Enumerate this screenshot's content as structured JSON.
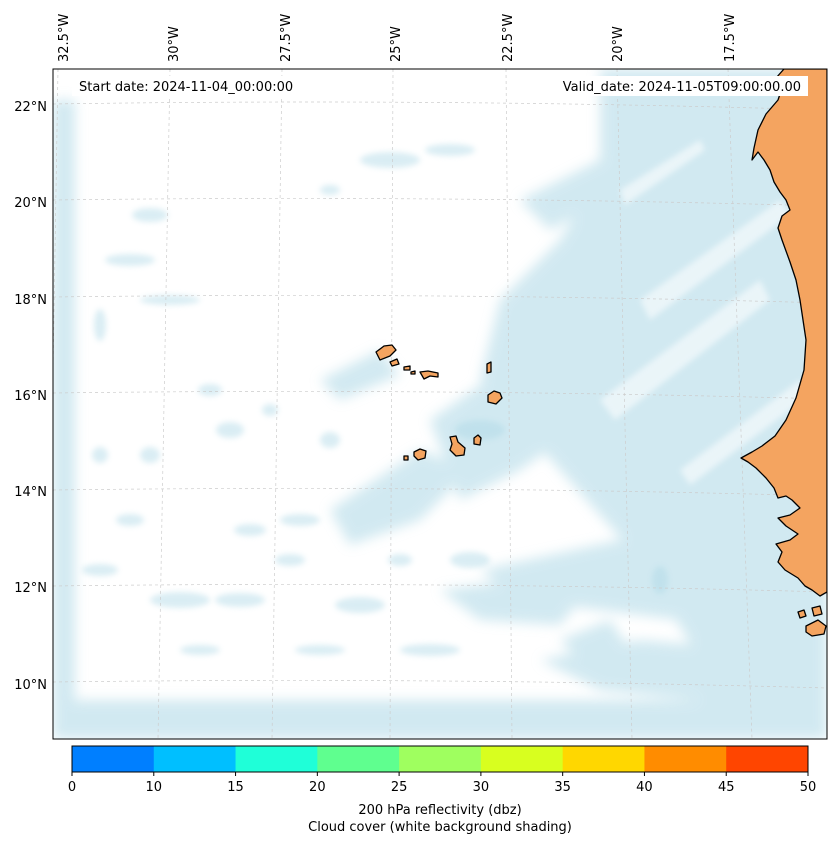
{
  "map": {
    "start_date": "Start date: 2024-11-04_00:00:00",
    "valid_date": "Valid_date: 2024-11-05T09:00:00.00",
    "lon_labels": [
      "32.5°W",
      "30°W",
      "27.5°W",
      "25°W",
      "22.5°W",
      "20°W",
      "17.5°W"
    ],
    "lat_labels": [
      "22°N",
      "20°N",
      "18°N",
      "16°N",
      "14°N",
      "12°N",
      "10°N"
    ],
    "colors": {
      "ocean": "#ffffff",
      "land": "#f4a460",
      "cloud": "#add8e6",
      "coast": "#000000"
    }
  },
  "colorbar": {
    "ticks": [
      "0",
      "10",
      "15",
      "20",
      "25",
      "30",
      "35",
      "40",
      "45",
      "50"
    ],
    "colors": [
      "#007fff",
      "#00bfff",
      "#1fffd8",
      "#5fff8f",
      "#9fff5f",
      "#d8ff1f",
      "#ffd700",
      "#ff8c00",
      "#ff4500"
    ],
    "label_line1": "200 hPa reflectivity (dbz)",
    "label_line2": "Cloud cover (white background shading)"
  }
}
